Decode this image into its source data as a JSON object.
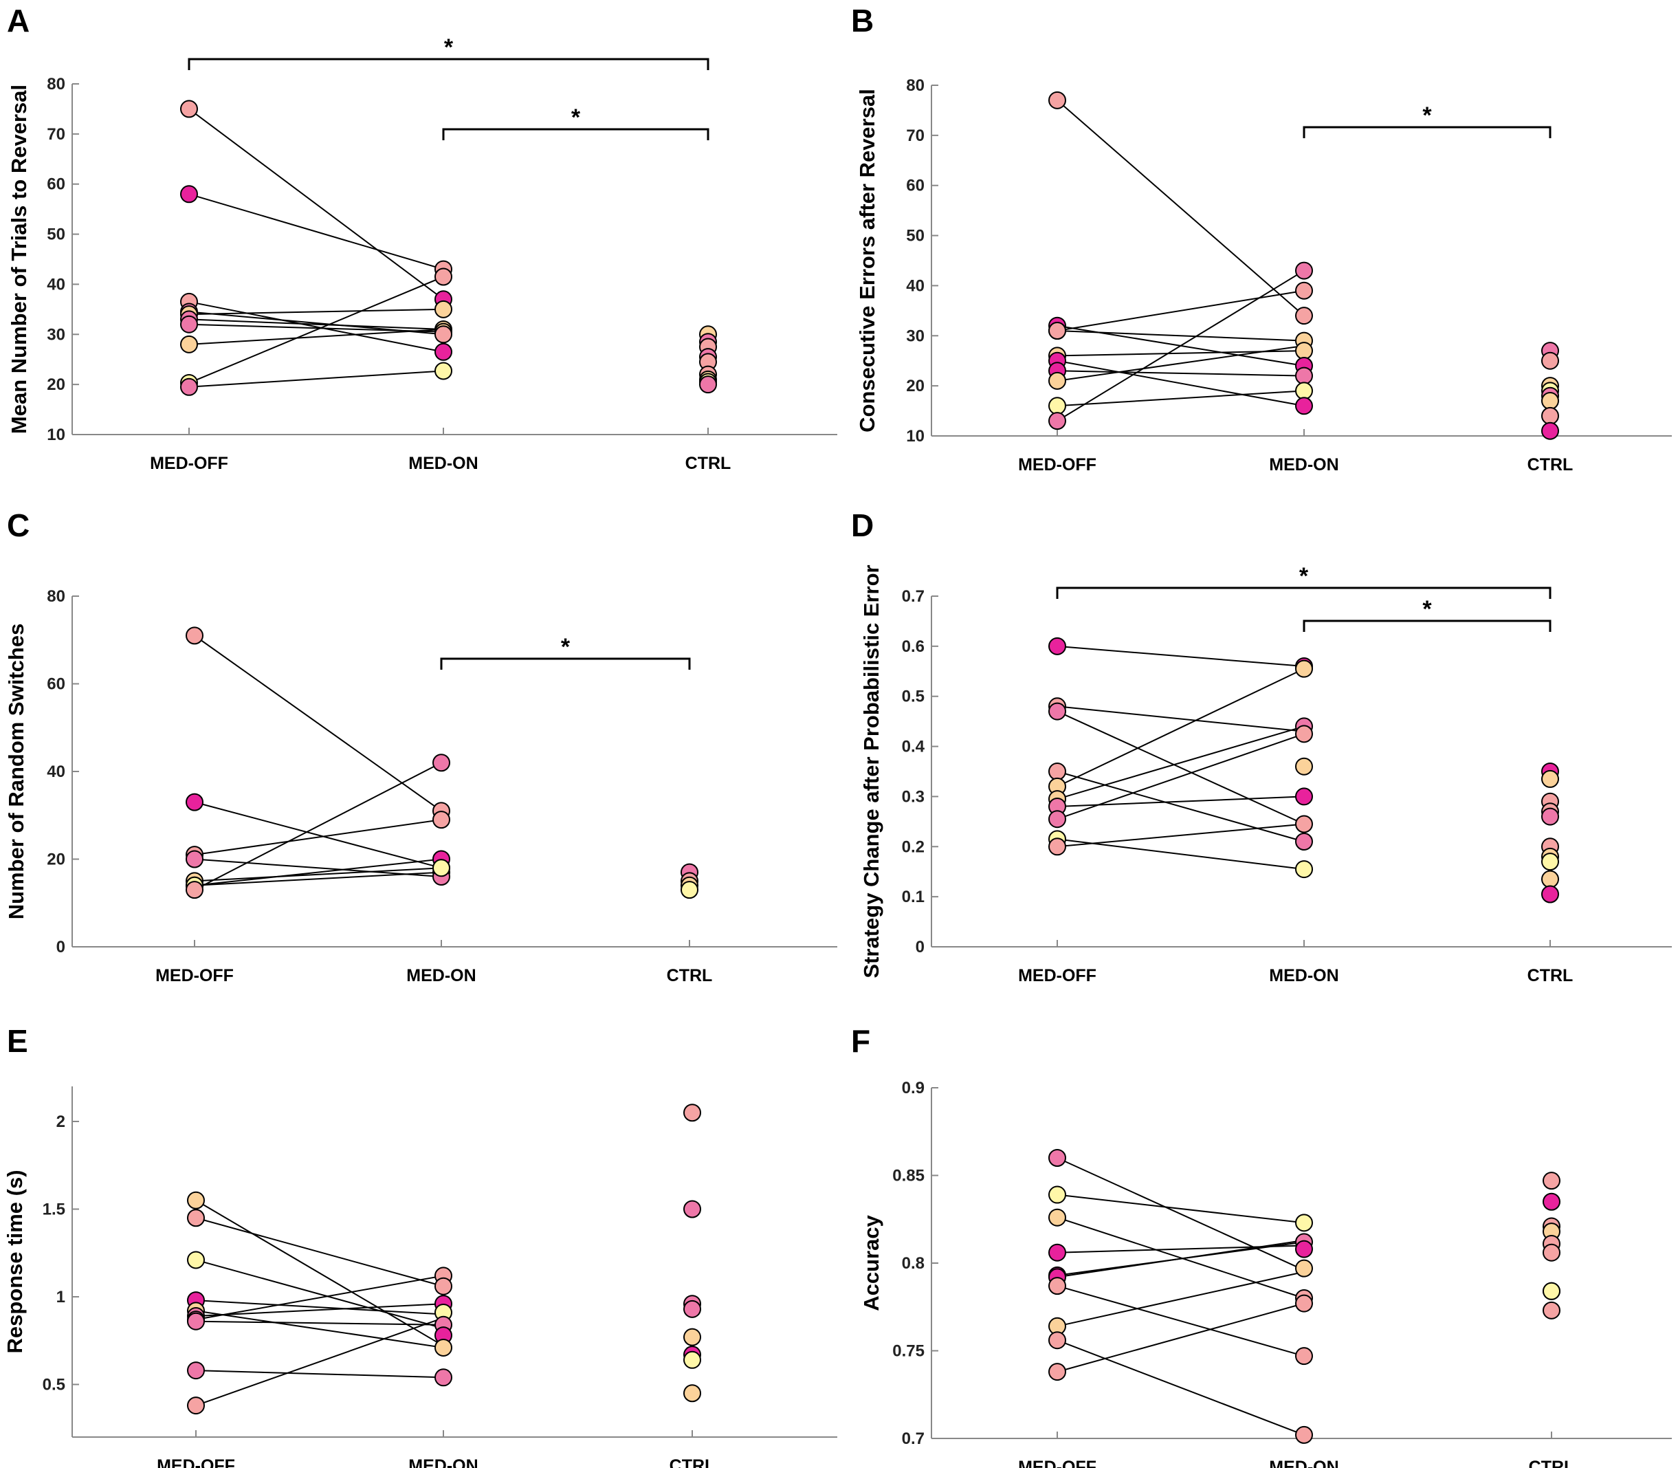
{
  "figure_title": "",
  "colors": {
    "light_yellow": "#FFF7A8",
    "peach": "#FBD29A",
    "salmon": "#F5A3A3",
    "pink": "#EE77A8",
    "magenta": "#E8229C"
  },
  "chart_data": [
    {
      "type": "scatter",
      "panel": "A",
      "title": "",
      "ylabel": "Mean Number of Trials to Reversal",
      "categories": [
        "MED-OFF",
        "MED-ON",
        "CTRL"
      ],
      "ylim": [
        10,
        80
      ],
      "yticks": [
        "10",
        "20",
        "30",
        "40",
        "50",
        "60",
        "70",
        "80"
      ],
      "pairs": [
        {
          "off": 75,
          "on": 37,
          "color": "salmon"
        },
        {
          "off": 58,
          "on": 43,
          "color": "magenta"
        },
        {
          "off": 36.5,
          "on": 26.5,
          "color": "salmon"
        },
        {
          "off": 34.5,
          "on": 30,
          "color": "pink"
        },
        {
          "off": 34,
          "on": 35,
          "color": "peach"
        },
        {
          "off": 33,
          "on": 31,
          "color": "pink"
        },
        {
          "off": 32,
          "on": 30.5,
          "color": "pink"
        },
        {
          "off": 28,
          "on": 31,
          "color": "peach"
        },
        {
          "off": 20.3,
          "on": 41.5,
          "color": "light_yellow"
        },
        {
          "off": 19.5,
          "on": 22.7,
          "color": "pink"
        }
      ],
      "on_markers": [
        {
          "v": 43,
          "color": "salmon"
        },
        {
          "v": 41.5,
          "color": "salmon"
        },
        {
          "v": 37,
          "color": "magenta"
        },
        {
          "v": 35,
          "color": "peach"
        },
        {
          "v": 31,
          "color": "peach"
        },
        {
          "v": 30.5,
          "color": "peach"
        },
        {
          "v": 30,
          "color": "salmon"
        },
        {
          "v": 26.5,
          "color": "magenta"
        },
        {
          "v": 22.7,
          "color": "light_yellow"
        }
      ],
      "ctrl": [
        {
          "v": 30,
          "color": "peach"
        },
        {
          "v": 28.5,
          "color": "pink"
        },
        {
          "v": 27.5,
          "color": "salmon"
        },
        {
          "v": 25.5,
          "color": "pink"
        },
        {
          "v": 24.5,
          "color": "salmon"
        },
        {
          "v": 22,
          "color": "salmon"
        },
        {
          "v": 21,
          "color": "peach"
        },
        {
          "v": 20.5,
          "color": "light_yellow"
        },
        {
          "v": 20,
          "color": "pink"
        }
      ],
      "significance": [
        {
          "from": "MED-OFF",
          "to": "CTRL",
          "label": "*",
          "level": 1
        },
        {
          "from": "MED-ON",
          "to": "CTRL",
          "label": "*",
          "level": 0
        }
      ]
    },
    {
      "type": "scatter",
      "panel": "B",
      "title": "",
      "ylabel": "Consecutive Errors after Reversal",
      "categories": [
        "MED-OFF",
        "MED-ON",
        "CTRL"
      ],
      "ylim": [
        10,
        80
      ],
      "yticks": [
        "10",
        "20",
        "30",
        "40",
        "50",
        "60",
        "70",
        "80"
      ],
      "pairs": [
        {
          "off": 77,
          "on": 34,
          "color": "salmon"
        },
        {
          "off": 32,
          "on": 24,
          "color": "magenta"
        },
        {
          "off": 31,
          "on": 29,
          "color": "salmon"
        },
        {
          "off": 31,
          "on": 39,
          "color": "salmon"
        },
        {
          "off": 26,
          "on": 27,
          "color": "peach"
        },
        {
          "off": 25,
          "on": 16,
          "color": "magenta"
        },
        {
          "off": 23,
          "on": 22,
          "color": "magenta"
        },
        {
          "off": 21,
          "on": 28,
          "color": "peach"
        },
        {
          "off": 16,
          "on": 19,
          "color": "light_yellow"
        },
        {
          "off": 13,
          "on": 43,
          "color": "pink"
        }
      ],
      "on_markers": [
        {
          "v": 43,
          "color": "pink"
        },
        {
          "v": 39,
          "color": "salmon"
        },
        {
          "v": 34,
          "color": "salmon"
        },
        {
          "v": 29,
          "color": "peach"
        },
        {
          "v": 27,
          "color": "peach"
        },
        {
          "v": 24,
          "color": "magenta"
        },
        {
          "v": 22,
          "color": "pink"
        },
        {
          "v": 19,
          "color": "light_yellow"
        },
        {
          "v": 16,
          "color": "magenta"
        }
      ],
      "ctrl": [
        {
          "v": 27,
          "color": "pink"
        },
        {
          "v": 25,
          "color": "salmon"
        },
        {
          "v": 20,
          "color": "peach"
        },
        {
          "v": 19,
          "color": "light_yellow"
        },
        {
          "v": 18,
          "color": "pink"
        },
        {
          "v": 17,
          "color": "peach"
        },
        {
          "v": 14,
          "color": "salmon"
        },
        {
          "v": 11,
          "color": "magenta"
        }
      ],
      "significance": [
        {
          "from": "MED-ON",
          "to": "CTRL",
          "label": "*",
          "level": 0
        }
      ]
    },
    {
      "type": "scatter",
      "panel": "C",
      "title": "",
      "ylabel": "Number of Random Switches",
      "categories": [
        "MED-OFF",
        "MED-ON",
        "CTRL"
      ],
      "ylim": [
        0,
        80
      ],
      "yticks": [
        "0",
        "20",
        "40",
        "60",
        "80"
      ],
      "pairs": [
        {
          "off": 71,
          "on": 31,
          "color": "salmon"
        },
        {
          "off": 33,
          "on": 18,
          "color": "magenta"
        },
        {
          "off": 21,
          "on": 29,
          "color": "salmon"
        },
        {
          "off": 20,
          "on": 16,
          "color": "pink"
        },
        {
          "off": 15,
          "on": 18,
          "color": "peach"
        },
        {
          "off": 14,
          "on": 20,
          "color": "peach"
        },
        {
          "off": 14,
          "on": 17,
          "color": "light_yellow"
        },
        {
          "off": 13,
          "on": 42,
          "color": "salmon"
        }
      ],
      "on_markers": [
        {
          "v": 42,
          "color": "pink"
        },
        {
          "v": 31,
          "color": "salmon"
        },
        {
          "v": 29,
          "color": "salmon"
        },
        {
          "v": 20,
          "color": "magenta"
        },
        {
          "v": 18,
          "color": "peach"
        },
        {
          "v": 17,
          "color": "pink"
        },
        {
          "v": 16,
          "color": "pink"
        },
        {
          "v": 18,
          "color": "light_yellow"
        }
      ],
      "ctrl": [
        {
          "v": 17,
          "color": "pink"
        },
        {
          "v": 15,
          "color": "salmon"
        },
        {
          "v": 14,
          "color": "peach"
        },
        {
          "v": 13,
          "color": "light_yellow"
        }
      ],
      "significance": [
        {
          "from": "MED-ON",
          "to": "CTRL",
          "label": "*",
          "level": 0
        }
      ]
    },
    {
      "type": "scatter",
      "panel": "D",
      "title": "",
      "ylabel": "Strategy Change after Probabilistic Error",
      "categories": [
        "MED-OFF",
        "MED-ON",
        "CTRL"
      ],
      "ylim": [
        0,
        0.7
      ],
      "yticks": [
        "0",
        "0.1",
        "0.2",
        "0.3",
        "0.4",
        "0.5",
        "0.6",
        "0.7"
      ],
      "pairs": [
        {
          "off": 0.6,
          "on": 0.56,
          "color": "magenta"
        },
        {
          "off": 0.48,
          "on": 0.43,
          "color": "salmon"
        },
        {
          "off": 0.47,
          "on": 0.245,
          "color": "pink"
        },
        {
          "off": 0.35,
          "on": 0.21,
          "color": "salmon"
        },
        {
          "off": 0.32,
          "on": 0.555,
          "color": "peach"
        },
        {
          "off": 0.295,
          "on": 0.44,
          "color": "peach"
        },
        {
          "off": 0.28,
          "on": 0.3,
          "color": "pink"
        },
        {
          "off": 0.255,
          "on": 0.425,
          "color": "pink"
        },
        {
          "off": 0.215,
          "on": 0.155,
          "color": "light_yellow"
        },
        {
          "off": 0.2,
          "on": 0.245,
          "color": "salmon"
        }
      ],
      "on_markers": [
        {
          "v": 0.56,
          "color": "magenta"
        },
        {
          "v": 0.555,
          "color": "peach"
        },
        {
          "v": 0.44,
          "color": "pink"
        },
        {
          "v": 0.425,
          "color": "salmon"
        },
        {
          "v": 0.36,
          "color": "peach"
        },
        {
          "v": 0.3,
          "color": "magenta"
        },
        {
          "v": 0.245,
          "color": "salmon"
        },
        {
          "v": 0.21,
          "color": "pink"
        },
        {
          "v": 0.155,
          "color": "light_yellow"
        }
      ],
      "ctrl": [
        {
          "v": 0.35,
          "color": "magenta"
        },
        {
          "v": 0.335,
          "color": "peach"
        },
        {
          "v": 0.29,
          "color": "salmon"
        },
        {
          "v": 0.27,
          "color": "salmon"
        },
        {
          "v": 0.26,
          "color": "pink"
        },
        {
          "v": 0.2,
          "color": "salmon"
        },
        {
          "v": 0.18,
          "color": "peach"
        },
        {
          "v": 0.17,
          "color": "light_yellow"
        },
        {
          "v": 0.135,
          "color": "peach"
        },
        {
          "v": 0.105,
          "color": "magenta"
        }
      ],
      "significance": [
        {
          "from": "MED-OFF",
          "to": "CTRL",
          "label": "*",
          "level": 1
        },
        {
          "from": "MED-ON",
          "to": "CTRL",
          "label": "*",
          "level": 0
        }
      ]
    },
    {
      "type": "scatter",
      "panel": "E",
      "title": "",
      "ylabel": "Response time (s)",
      "categories": [
        "MED-OFF",
        "MED-ON",
        "CTRL"
      ],
      "ylim": [
        0.2,
        2.2
      ],
      "yticks": [
        "0.5",
        "1",
        "1.5",
        "2"
      ],
      "ytick_values": [
        0.5,
        1,
        1.5,
        2
      ],
      "pairs": [
        {
          "off": 1.55,
          "on": 0.72,
          "color": "peach"
        },
        {
          "off": 1.45,
          "on": 1.06,
          "color": "salmon"
        },
        {
          "off": 1.21,
          "on": 0.82,
          "color": "light_yellow"
        },
        {
          "off": 0.98,
          "on": 0.9,
          "color": "magenta"
        },
        {
          "off": 0.92,
          "on": 0.71,
          "color": "peach"
        },
        {
          "off": 0.89,
          "on": 0.96,
          "color": "pink"
        },
        {
          "off": 0.87,
          "on": 1.12,
          "color": "pink"
        },
        {
          "off": 0.86,
          "on": 0.84,
          "color": "pink"
        },
        {
          "off": 0.58,
          "on": 0.54,
          "color": "pink"
        },
        {
          "off": 0.38,
          "on": 0.88,
          "color": "salmon"
        }
      ],
      "on_markers": [
        {
          "v": 1.12,
          "color": "salmon"
        },
        {
          "v": 1.06,
          "color": "salmon"
        },
        {
          "v": 0.96,
          "color": "magenta"
        },
        {
          "v": 0.91,
          "color": "light_yellow"
        },
        {
          "v": 0.84,
          "color": "pink"
        },
        {
          "v": 0.78,
          "color": "magenta"
        },
        {
          "v": 0.71,
          "color": "peach"
        },
        {
          "v": 0.54,
          "color": "pink"
        }
      ],
      "ctrl": [
        {
          "v": 2.05,
          "color": "salmon"
        },
        {
          "v": 1.5,
          "color": "pink"
        },
        {
          "v": 0.96,
          "color": "pink"
        },
        {
          "v": 0.93,
          "color": "pink"
        },
        {
          "v": 0.77,
          "color": "peach"
        },
        {
          "v": 0.67,
          "color": "magenta"
        },
        {
          "v": 0.64,
          "color": "light_yellow"
        },
        {
          "v": 0.45,
          "color": "peach"
        }
      ],
      "significance": []
    },
    {
      "type": "scatter",
      "panel": "F",
      "title": "",
      "ylabel": "Accuracy",
      "categories": [
        "MED-OFF",
        "MED-ON",
        "CTRL"
      ],
      "ylim": [
        0.7,
        0.9
      ],
      "yticks": [
        "0.7",
        "0.75",
        "0.8",
        "0.85",
        "0.9"
      ],
      "pairs": [
        {
          "off": 0.86,
          "on": 0.796,
          "color": "pink"
        },
        {
          "off": 0.839,
          "on": 0.823,
          "color": "light_yellow"
        },
        {
          "off": 0.826,
          "on": 0.78,
          "color": "peach"
        },
        {
          "off": 0.806,
          "on": 0.81,
          "color": "magenta"
        },
        {
          "off": 0.793,
          "on": 0.812,
          "color": "magenta"
        },
        {
          "off": 0.792,
          "on": 0.813,
          "color": "magenta"
        },
        {
          "off": 0.787,
          "on": 0.747,
          "color": "salmon"
        },
        {
          "off": 0.764,
          "on": 0.795,
          "color": "peach"
        },
        {
          "off": 0.756,
          "on": 0.702,
          "color": "salmon"
        },
        {
          "off": 0.738,
          "on": 0.777,
          "color": "salmon"
        }
      ],
      "on_markers": [
        {
          "v": 0.823,
          "color": "light_yellow"
        },
        {
          "v": 0.812,
          "color": "pink"
        },
        {
          "v": 0.808,
          "color": "magenta"
        },
        {
          "v": 0.797,
          "color": "peach"
        },
        {
          "v": 0.78,
          "color": "salmon"
        },
        {
          "v": 0.777,
          "color": "salmon"
        },
        {
          "v": 0.747,
          "color": "salmon"
        },
        {
          "v": 0.702,
          "color": "salmon"
        }
      ],
      "ctrl": [
        {
          "v": 0.847,
          "color": "salmon"
        },
        {
          "v": 0.835,
          "color": "magenta"
        },
        {
          "v": 0.821,
          "color": "salmon"
        },
        {
          "v": 0.818,
          "color": "peach"
        },
        {
          "v": 0.811,
          "color": "salmon"
        },
        {
          "v": 0.806,
          "color": "salmon"
        },
        {
          "v": 0.784,
          "color": "peach"
        },
        {
          "v": 0.784,
          "color": "light_yellow"
        },
        {
          "v": 0.773,
          "color": "salmon"
        }
      ],
      "significance": []
    }
  ]
}
